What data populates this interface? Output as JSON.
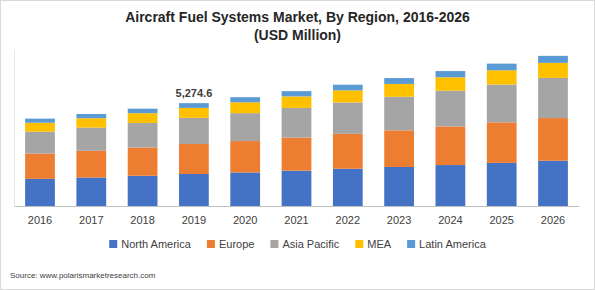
{
  "chart_data": {
    "type": "bar",
    "title": "Aircraft Fuel Systems Market, By Region, 2016-2026",
    "subtitle": "(USD Million)",
    "source": "Source: www.polarismarketresearch.com",
    "categories": [
      "2016",
      "2017",
      "2018",
      "2019",
      "2020",
      "2021",
      "2022",
      "2023",
      "2024",
      "2025",
      "2026"
    ],
    "series": [
      {
        "name": "North America",
        "color": "#4472c4",
        "values": [
          1390,
          1460,
          1550,
          1640,
          1720,
          1810,
          1910,
          2000,
          2100,
          2210,
          2320
        ]
      },
      {
        "name": "Europe",
        "color": "#ed7d31",
        "values": [
          1300,
          1370,
          1450,
          1540,
          1610,
          1700,
          1790,
          1880,
          1980,
          2080,
          2190
        ]
      },
      {
        "name": "Asia Pacific",
        "color": "#a5a5a5",
        "values": [
          1120,
          1190,
          1260,
          1340,
          1430,
          1520,
          1610,
          1720,
          1830,
          1940,
          2060
        ]
      },
      {
        "name": "MEA",
        "color": "#ffc000",
        "values": [
          460,
          480,
          500,
          510,
          560,
          590,
          620,
          660,
          690,
          730,
          770
        ]
      },
      {
        "name": "Latin America",
        "color": "#5b9bd5",
        "values": [
          210,
          220,
          230,
          244.6,
          260,
          270,
          290,
          300,
          320,
          340,
          360
        ]
      }
    ],
    "annotations": [
      {
        "text": "5,274.6",
        "category": "2019",
        "value": 5274.6
      }
    ],
    "ylim": [
      0,
      8000
    ],
    "stacked": true,
    "grid": false,
    "legend": "bottom",
    "tick_labels": "x"
  }
}
